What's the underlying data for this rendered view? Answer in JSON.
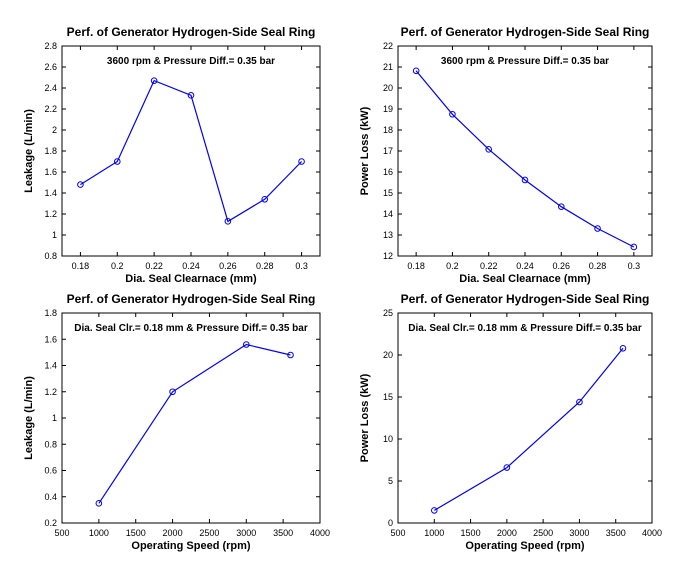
{
  "chart_data": [
    {
      "type": "line",
      "title": "Perf. of Generator Hydrogen-Side Seal Ring",
      "annotation": "3600 rpm & Pressure Diff.= 0.35 bar",
      "xlabel": "Dia. Seal Clearnace (mm)",
      "ylabel": "Leakage (L/min)",
      "xlim": [
        0.17,
        0.31
      ],
      "ylim": [
        0.8,
        2.8
      ],
      "xticks": [
        0.18,
        0.2,
        0.22,
        0.24,
        0.26,
        0.28,
        0.3
      ],
      "xtick_labels": [
        "0.18",
        "0.2",
        "0.22",
        "0.24",
        "0.26",
        "0.28",
        "0.3"
      ],
      "yticks": [
        0.8,
        1,
        1.2,
        1.4,
        1.6,
        1.8,
        2,
        2.2,
        2.4,
        2.6,
        2.8
      ],
      "ytick_labels": [
        "0.8",
        "1",
        "1.2",
        "1.4",
        "1.6",
        "1.8",
        "2",
        "2.2",
        "2.4",
        "2.6",
        "2.8"
      ],
      "grid": false,
      "color": "#0000ff",
      "x": [
        0.18,
        0.2,
        0.22,
        0.24,
        0.26,
        0.28,
        0.3
      ],
      "y": [
        1.48,
        1.7,
        2.47,
        2.33,
        1.13,
        1.34,
        1.7
      ]
    },
    {
      "type": "line",
      "title": "Perf. of Generator Hydrogen-Side Seal Ring",
      "annotation": "3600 rpm & Pressure Diff.= 0.35 bar",
      "xlabel": "Dia. Seal Clearnace (mm)",
      "ylabel": "Power Loss (kW)",
      "xlim": [
        0.17,
        0.31
      ],
      "ylim": [
        12,
        22
      ],
      "xticks": [
        0.18,
        0.2,
        0.22,
        0.24,
        0.26,
        0.28,
        0.3
      ],
      "xtick_labels": [
        "0.18",
        "0.2",
        "0.22",
        "0.24",
        "0.26",
        "0.28",
        "0.3"
      ],
      "yticks": [
        12,
        13,
        14,
        15,
        16,
        17,
        18,
        19,
        20,
        21,
        22
      ],
      "ytick_labels": [
        "12",
        "13",
        "14",
        "15",
        "16",
        "17",
        "18",
        "19",
        "20",
        "21",
        "22"
      ],
      "grid": false,
      "color": "#0000ff",
      "x": [
        0.18,
        0.2,
        0.22,
        0.24,
        0.26,
        0.28,
        0.3
      ],
      "y": [
        20.82,
        18.75,
        17.08,
        15.62,
        14.35,
        13.31,
        12.43
      ]
    },
    {
      "type": "line",
      "title": "Perf. of Generator Hydrogen-Side Seal Ring",
      "annotation": "Dia. Seal Clr.= 0.18 mm & Pressure Diff.= 0.35 bar",
      "xlabel": "Operating Speed (rpm)",
      "ylabel": "Leakage (L/min)",
      "xlim": [
        500,
        4000
      ],
      "ylim": [
        0.2,
        1.8
      ],
      "xticks": [
        500,
        1000,
        1500,
        2000,
        2500,
        3000,
        3500,
        4000
      ],
      "xtick_labels": [
        "500",
        "1000",
        "1500",
        "2000",
        "2500",
        "3000",
        "3500",
        "4000"
      ],
      "yticks": [
        0.2,
        0.4,
        0.6,
        0.8,
        1,
        1.2,
        1.4,
        1.6,
        1.8
      ],
      "ytick_labels": [
        "0.2",
        "0.4",
        "0.6",
        "0.8",
        "1",
        "1.2",
        "1.4",
        "1.6",
        "1.8"
      ],
      "grid": false,
      "color": "#0000ff",
      "x": [
        1000,
        2000,
        3000,
        3600
      ],
      "y": [
        0.35,
        1.2,
        1.56,
        1.48
      ]
    },
    {
      "type": "line",
      "title": "Perf. of Generator Hydrogen-Side Seal Ring",
      "annotation": "Dia. Seal Clr.= 0.18 mm & Pressure Diff.= 0.35 bar",
      "xlabel": "Operating Speed (rpm)",
      "ylabel": "Power Loss (kW)",
      "xlim": [
        500,
        4000
      ],
      "ylim": [
        0,
        25
      ],
      "xticks": [
        500,
        1000,
        1500,
        2000,
        2500,
        3000,
        3500,
        4000
      ],
      "xtick_labels": [
        "500",
        "1000",
        "1500",
        "2000",
        "2500",
        "3000",
        "3500",
        "4000"
      ],
      "yticks": [
        0,
        5,
        10,
        15,
        20,
        25
      ],
      "ytick_labels": [
        "0",
        "5",
        "10",
        "15",
        "20",
        "25"
      ],
      "grid": false,
      "color": "#0000ff",
      "x": [
        1000,
        2000,
        3000,
        3600
      ],
      "y": [
        1.5,
        6.6,
        14.4,
        20.8
      ]
    }
  ]
}
